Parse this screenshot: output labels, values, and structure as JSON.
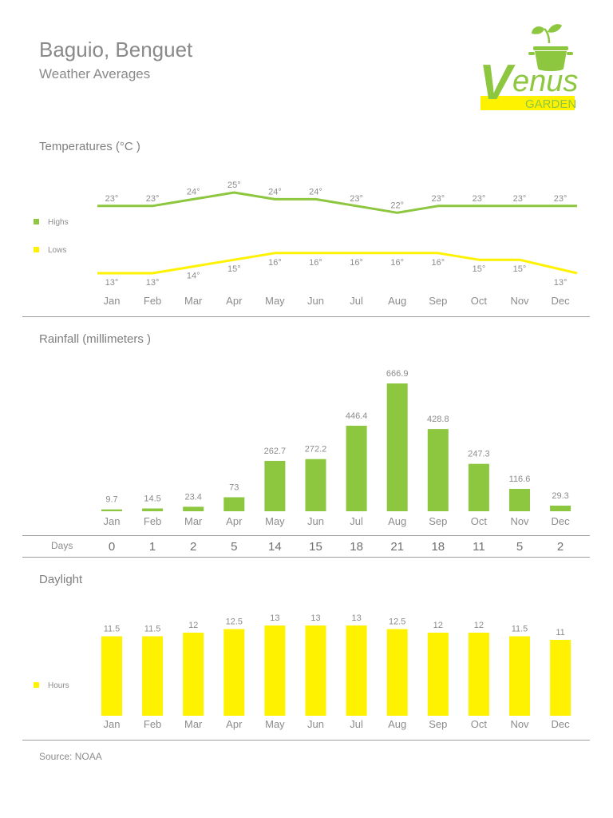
{
  "header": {
    "title": "Baguio, Benguet",
    "subtitle": "Weather Averages"
  },
  "logo": {
    "word": "enus",
    "initial": "V",
    "subword": "GARDEN"
  },
  "colors": {
    "green": "#8dc63f",
    "yellow": "#fff200",
    "text": "#8c8c8c"
  },
  "sections": {
    "temperatures": "Temperatures (°C )",
    "rainfall": "Rainfall (millimeters )",
    "daylight": "Daylight"
  },
  "days_label": "Days",
  "source": "Source: NOAA",
  "chart_data": [
    {
      "type": "line",
      "title": "Temperatures (°C )",
      "categories": [
        "Jan",
        "Feb",
        "Mar",
        "Apr",
        "May",
        "Jun",
        "Jul",
        "Aug",
        "Sep",
        "Oct",
        "Nov",
        "Dec"
      ],
      "series": [
        {
          "name": "Highs",
          "color": "#8dc63f",
          "values": [
            23,
            23,
            24,
            25,
            24,
            24,
            23,
            22,
            23,
            23,
            23,
            23
          ]
        },
        {
          "name": "Lows",
          "color": "#fff200",
          "values": [
            13,
            13,
            14,
            15,
            16,
            16,
            16,
            16,
            16,
            15,
            15,
            13
          ]
        }
      ],
      "value_suffix": "°",
      "legend": "left",
      "grid": false
    },
    {
      "type": "bar",
      "title": "Rainfall (millimeters )",
      "categories": [
        "Jan",
        "Feb",
        "Mar",
        "Apr",
        "May",
        "Jun",
        "Jul",
        "Aug",
        "Sep",
        "Oct",
        "Nov",
        "Dec"
      ],
      "values": [
        9.7,
        14.5,
        23.4,
        73,
        262.7,
        272.2,
        446.4,
        666.9,
        428.8,
        247.3,
        116.6,
        29.3
      ],
      "color": "#8dc63f",
      "ylim": [
        0,
        666.9
      ],
      "grid": false
    },
    {
      "type": "table",
      "row_label": "Days",
      "categories": [
        "Jan",
        "Feb",
        "Mar",
        "Apr",
        "May",
        "Jun",
        "Jul",
        "Aug",
        "Sep",
        "Oct",
        "Nov",
        "Dec"
      ],
      "values": [
        0,
        1,
        2,
        5,
        14,
        15,
        18,
        21,
        18,
        11,
        5,
        2
      ]
    },
    {
      "type": "bar",
      "title": "Daylight",
      "categories": [
        "Jan",
        "Feb",
        "Mar",
        "Apr",
        "May",
        "Jun",
        "Jul",
        "Aug",
        "Sep",
        "Oct",
        "Nov",
        "Dec"
      ],
      "series": [
        {
          "name": "Hours",
          "color": "#fff200",
          "values": [
            11.5,
            11.5,
            12,
            12.5,
            13,
            13,
            13,
            12.5,
            12,
            12,
            11.5,
            11
          ]
        }
      ],
      "legend": "left",
      "grid": false
    }
  ]
}
